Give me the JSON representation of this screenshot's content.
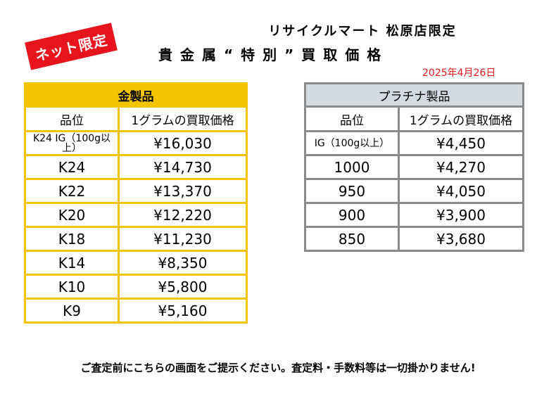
{
  "badge": "ネット限定",
  "store_name": "リサイクルマート 松原店限定",
  "title": "貴金属“特別”買取価格",
  "date": "2025年4月26日",
  "gold": {
    "heading": "金製品",
    "col_grade": "品位",
    "col_price": "1グラムの買取価格",
    "rows": [
      {
        "grade": "K24 IG（100g以上）",
        "price": "¥16,030"
      },
      {
        "grade": "K24",
        "price": "¥14,730"
      },
      {
        "grade": "K22",
        "price": "¥13,370"
      },
      {
        "grade": "K20",
        "price": "¥12,220"
      },
      {
        "grade": "K18",
        "price": "¥11,230"
      },
      {
        "grade": "K14",
        "price": "¥8,350"
      },
      {
        "grade": "K10",
        "price": "¥5,800"
      },
      {
        "grade": "K9",
        "price": "¥5,160"
      }
    ]
  },
  "platinum": {
    "heading": "プラチナ製品",
    "col_grade": "品位",
    "col_price": "1グラムの買取価格",
    "rows": [
      {
        "grade": "IG（100g以上）",
        "price": "¥4,450"
      },
      {
        "grade": "1000",
        "price": "¥4,270"
      },
      {
        "grade": "950",
        "price": "¥4,050"
      },
      {
        "grade": "900",
        "price": "¥3,900"
      },
      {
        "grade": "850",
        "price": "¥3,680"
      }
    ]
  },
  "note": "ご査定前にこちらの画面をご提示ください。査定料・手数料等は一切掛かりません!",
  "colors": {
    "accent_red": "#e11d1d",
    "gold_yellow": "#f5c400",
    "platinum_gray": "#d3dae0"
  }
}
